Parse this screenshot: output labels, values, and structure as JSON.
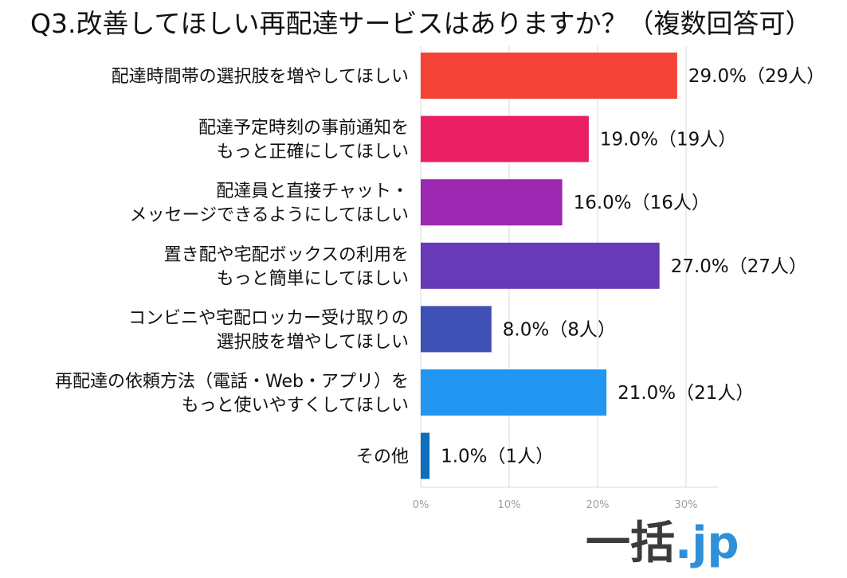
{
  "chart_data": {
    "type": "bar",
    "orientation": "horizontal",
    "title": "Q3.改善してほしい再配達サービスはありますか？（複数回答可）",
    "categories": [
      [
        "配達時間帯の選択肢を増やしてほしい"
      ],
      [
        "配達予定時刻の事前通知を",
        "もっと正確にしてほしい"
      ],
      [
        "配達員と直接チャット・",
        "メッセージできるようにしてほしい"
      ],
      [
        "置き配や宅配ボックスの利用を",
        "もっと簡単にしてほしい"
      ],
      [
        "コンビニや宅配ロッカー受け取りの",
        "選択肢を増やしてほしい"
      ],
      [
        "再配達の依頼方法（電話・Web・アプリ）を",
        "もっと使いやすくしてほしい"
      ],
      [
        "その他"
      ]
    ],
    "values": [
      29.0,
      19.0,
      16.0,
      27.0,
      8.0,
      21.0,
      1.0
    ],
    "data_labels": [
      "29.0%（29人）",
      "19.0%（19人）",
      "16.0%（16人）",
      "27.0%（27人）",
      "8.0%（8人）",
      "21.0%（21人）",
      "1.0%（1人）"
    ],
    "colors": [
      "#f44336",
      "#e91e63",
      "#9c27b0",
      "#673ab7",
      "#3f51b5",
      "#2196f3",
      "#0d6ebd"
    ],
    "xlim": [
      0,
      33.6
    ],
    "xticks": [
      0,
      10,
      20,
      30
    ],
    "xtick_labels": [
      "0%",
      "10%",
      "20%",
      "30%"
    ],
    "grid": true,
    "gridline_color": "#d9d9d9",
    "tick_label_color": "#9e9e9e"
  },
  "logo": {
    "part1": "一括",
    "part2": ".jp"
  }
}
